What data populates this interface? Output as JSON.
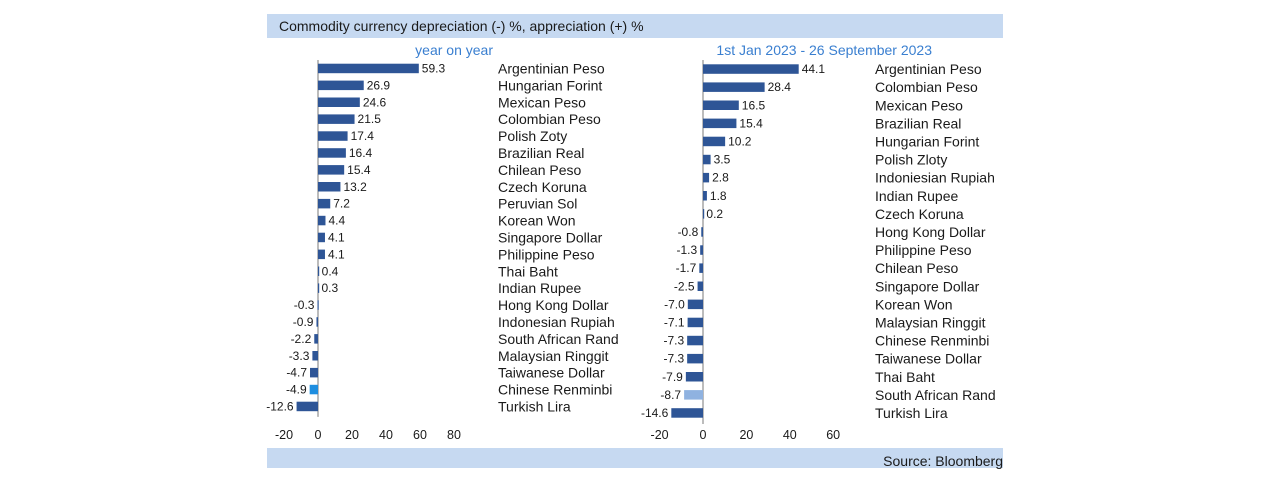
{
  "header": {
    "title": "Commodity currency depreciation (-) %, appreciation (+) %"
  },
  "footer": {
    "source": "Source: Bloomberg"
  },
  "colors": {
    "bar": "#2e5596",
    "highlight": "#1e8ee0",
    "highlight_light": "#8fb2e0",
    "header_bg": "#c6d9f1",
    "subtitle": "#3a7fd0"
  },
  "chart_data": [
    {
      "type": "bar",
      "orientation": "horizontal",
      "title": "year on year",
      "xlim": [
        -20,
        80
      ],
      "xticks": [
        -20,
        0,
        20,
        40,
        60,
        80
      ],
      "categories": [
        "Argentinian Peso",
        "Hungarian Forint",
        "Mexican Peso",
        "Colombian Peso",
        "Polish Zoty",
        "Brazilian Real",
        "Chilean Peso",
        "Czech Koruna",
        "Peruvian Sol",
        "Korean Won",
        "Singapore Dollar",
        "Philippine Peso",
        "Thai Baht",
        "Indian Rupee",
        "Hong Kong Dollar",
        "Indonesian Rupiah",
        "South African Rand",
        "Malaysian Ringgit",
        "Taiwanese Dollar",
        "Chinese Renminbi",
        "Turkish Lira"
      ],
      "values": [
        59.3,
        26.9,
        24.6,
        21.5,
        17.4,
        16.4,
        15.4,
        13.2,
        7.2,
        4.4,
        4.1,
        4.1,
        0.4,
        0.3,
        -0.3,
        -0.9,
        -2.2,
        -3.3,
        -4.7,
        -4.9,
        -12.6
      ],
      "value_labels": [
        "59.3",
        "26.9",
        "24.6",
        "21.5",
        "17.4",
        "16.4",
        "15.4",
        "13.2",
        "7.2",
        "4.4",
        "4.1",
        "4.1",
        "0.4",
        "0.3",
        "-0.3",
        "-0.9",
        "-2.2",
        "-3.3",
        "-4.7",
        "-4.9",
        "-12.6"
      ],
      "highlight_index": 19,
      "highlight_color": "#1e8ee0"
    },
    {
      "type": "bar",
      "orientation": "horizontal",
      "title": "1st Jan 2023 - 26 September 2023",
      "xlim": [
        -20,
        60
      ],
      "xticks": [
        -20,
        0,
        20,
        40,
        60
      ],
      "categories": [
        "Argentinian Peso",
        "Colombian Peso",
        "Mexican Peso",
        "Brazilian Real",
        "Hungarian Forint",
        "Polish Zloty",
        "Indoniesian Rupiah",
        "Indian Rupee",
        "Czech Koruna",
        "Hong Kong Dollar",
        "Philippine Peso",
        "Chilean Peso",
        "Singapore Dollar",
        "Korean Won",
        "Malaysian Ringgit",
        "Chinese Renminbi",
        "Taiwanese Dollar",
        "Thai Baht",
        "South African Rand",
        "Turkish Lira"
      ],
      "values": [
        44.1,
        28.4,
        16.5,
        15.4,
        10.2,
        3.5,
        2.8,
        1.8,
        0.2,
        -0.8,
        -1.3,
        -1.7,
        -2.5,
        -7.0,
        -7.1,
        -7.3,
        -7.3,
        -7.9,
        -8.7,
        -14.6
      ],
      "value_labels": [
        "44.1",
        "28.4",
        "16.5",
        "15.4",
        "10.2",
        "3.5",
        "2.8",
        "1.8",
        "0.2",
        "-0.8",
        "-1.3",
        "-1.7",
        "-2.5",
        "-7.0",
        "-7.1",
        "-7.3",
        "-7.3",
        "-7.9",
        "-8.7",
        "-14.6"
      ],
      "highlight_index": 18,
      "highlight_color": "#8fb2e0"
    }
  ]
}
